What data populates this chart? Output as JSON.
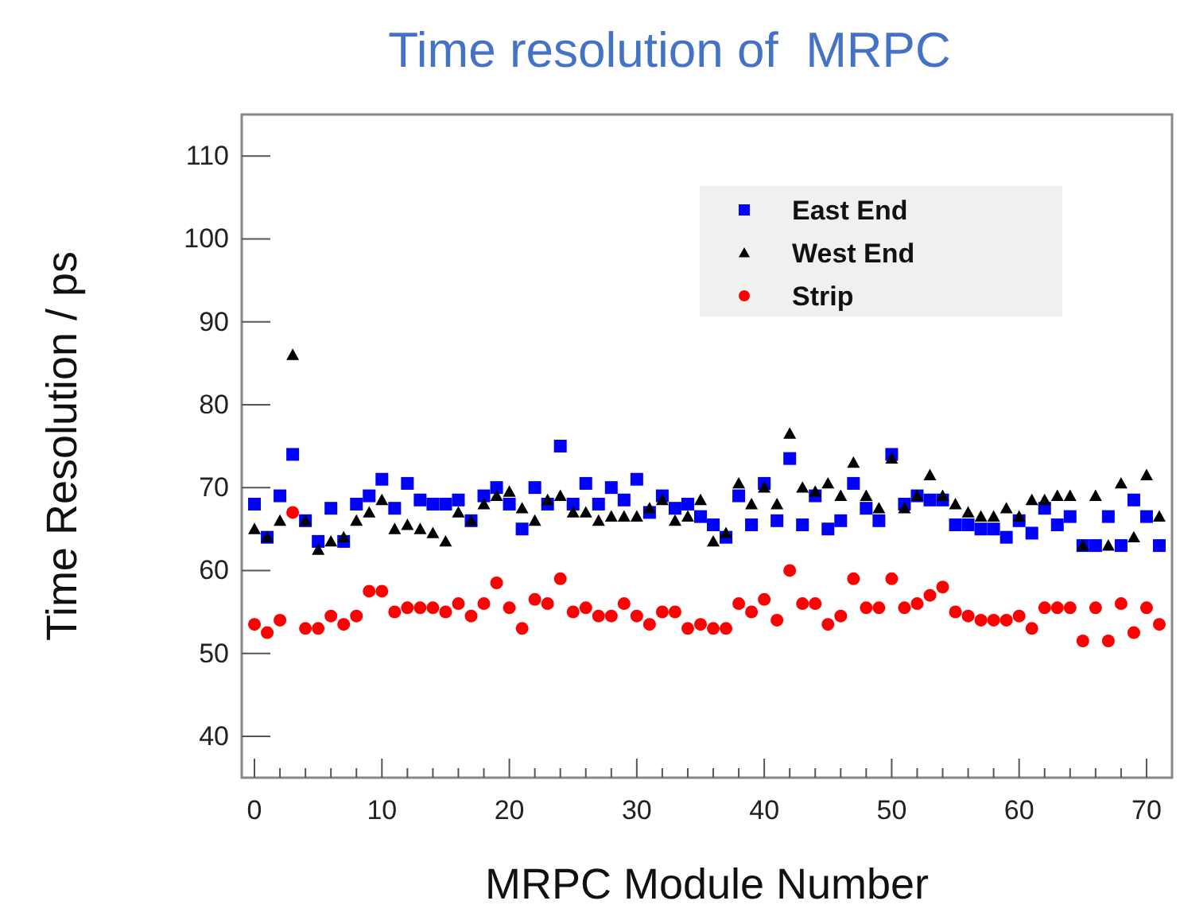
{
  "chart_data": {
    "type": "scatter",
    "title": "Time resolution of  MRPC",
    "xlabel": "MRPC Module Number",
    "ylabel": "Time Resolution / ps",
    "legend": "top right",
    "x": [
      0,
      1,
      2,
      3,
      4,
      5,
      6,
      7,
      8,
      9,
      10,
      11,
      12,
      13,
      14,
      15,
      16,
      17,
      18,
      19,
      20,
      21,
      22,
      23,
      24,
      25,
      26,
      27,
      28,
      29,
      30,
      31,
      32,
      33,
      34,
      35,
      36,
      37,
      38,
      39,
      40,
      41,
      42,
      43,
      44,
      45,
      46,
      47,
      48,
      49,
      50,
      51,
      52,
      53,
      54,
      55,
      56,
      57,
      58,
      59,
      60,
      61,
      62,
      63,
      64,
      65,
      66,
      67,
      68,
      69,
      70,
      71
    ],
    "xlim": [
      -1,
      72
    ],
    "ylim": [
      35,
      115
    ],
    "xticks": [
      0,
      {
        "value": 2,
        "label": null
      },
      {
        "value": 4,
        "label": null
      },
      {
        "value": 6,
        "label": null
      },
      {
        "value": 8,
        "label": null
      },
      10,
      {
        "value": 12,
        "label": null
      },
      {
        "value": 14,
        "label": null
      },
      {
        "value": 16,
        "label": null
      },
      {
        "value": 18,
        "label": null
      },
      20,
      {
        "value": 22,
        "label": null
      },
      {
        "value": 24,
        "label": null
      },
      {
        "value": 26,
        "label": null
      },
      {
        "value": 28,
        "label": null
      },
      30,
      {
        "value": 32,
        "label": null
      },
      {
        "value": 34,
        "label": null
      },
      {
        "value": 36,
        "label": null
      },
      {
        "value": 38,
        "label": null
      },
      40,
      {
        "value": 42,
        "label": null
      },
      {
        "value": 44,
        "label": null
      },
      {
        "value": 46,
        "label": null
      },
      {
        "value": 48,
        "label": null
      },
      50,
      {
        "value": 52,
        "label": null
      },
      {
        "value": 54,
        "label": null
      },
      {
        "value": 56,
        "label": null
      },
      {
        "value": 58,
        "label": null
      },
      60,
      {
        "value": 62,
        "label": null
      },
      {
        "value": 64,
        "label": null
      },
      {
        "value": 66,
        "label": null
      },
      {
        "value": 68,
        "label": null
      },
      70
    ],
    "yticks": [
      40,
      50,
      60,
      70,
      80,
      90,
      100,
      110
    ],
    "series": [
      {
        "name": "East End",
        "color": "#0000ff",
        "marker": "square",
        "values": [
          68,
          64,
          69,
          74,
          66,
          63.5,
          67.5,
          63.5,
          68,
          69,
          71,
          67.5,
          70.5,
          68.5,
          68,
          68,
          68.5,
          66,
          69,
          70,
          68,
          65,
          70,
          68,
          75,
          68,
          70.5,
          68,
          70,
          68.5,
          71,
          67,
          69,
          67.5,
          68,
          66.5,
          65.5,
          64,
          69,
          65.5,
          70.5,
          66,
          73.5,
          65.5,
          69,
          65,
          66,
          70.5,
          67.5,
          66,
          74,
          68,
          69,
          68.5,
          68.5,
          65.5,
          65.5,
          65,
          65,
          64,
          66,
          64.5,
          67.5,
          65.5,
          66.5,
          63,
          63,
          66.5,
          63,
          68.5,
          66.5,
          63
        ]
      },
      {
        "name": "West End",
        "color": "#000000",
        "marker": "triangle",
        "values": [
          65,
          64,
          66,
          86,
          66,
          62.5,
          63.5,
          64,
          66,
          67,
          68.5,
          65,
          65.5,
          65,
          64.5,
          63.5,
          67,
          66,
          68,
          69,
          69.5,
          67.5,
          66,
          68.5,
          69,
          67,
          67,
          66,
          66.5,
          66.5,
          66.5,
          67.5,
          68.5,
          66,
          66.5,
          68.5,
          63.5,
          64.5,
          70.5,
          68,
          70,
          68,
          76.5,
          70,
          69.5,
          70.5,
          69,
          73,
          69,
          67.5,
          73.5,
          67.5,
          69,
          71.5,
          69,
          68,
          67,
          66.5,
          66.5,
          67.5,
          66.5,
          68.5,
          68.5,
          69,
          69,
          63,
          69,
          63,
          70.5,
          64,
          71.5,
          66.5
        ]
      },
      {
        "name": "Strip",
        "color": "#ff0000",
        "marker": "circle",
        "values": [
          53.5,
          52.5,
          54,
          67,
          53,
          53,
          54.5,
          53.5,
          54.5,
          57.5,
          57.5,
          55,
          55.5,
          55.5,
          55.5,
          55,
          56,
          54.5,
          56,
          58.5,
          55.5,
          53,
          56.5,
          56,
          59,
          55,
          55.5,
          54.5,
          54.5,
          56,
          54.5,
          53.5,
          55,
          55,
          53,
          53.5,
          53,
          53,
          56,
          55,
          56.5,
          54,
          60,
          56,
          56,
          53.5,
          54.5,
          59,
          55.5,
          55.5,
          59,
          55.5,
          56,
          57,
          58,
          55,
          54.5,
          54,
          54,
          54,
          54.5,
          53,
          55.5,
          55.5,
          55.5,
          51.5,
          55.5,
          51.5,
          56,
          52.5,
          55.5,
          53.5
        ]
      }
    ]
  }
}
